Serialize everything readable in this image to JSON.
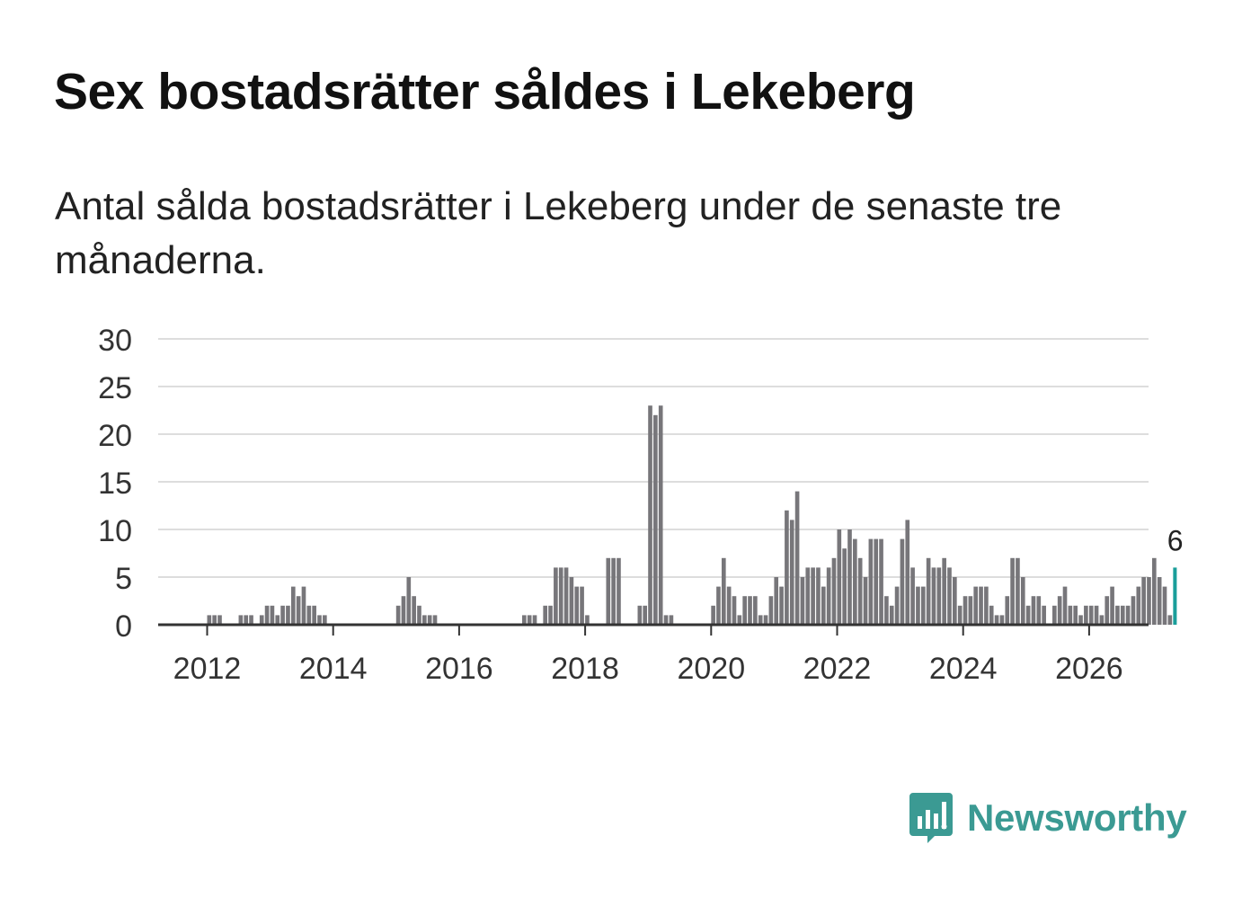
{
  "title": "Sex bostadsrätter såldes i Lekeberg",
  "subtitle": "Antal sålda bostadsrätter i Lekeberg under de senaste tre månaderna.",
  "brand": {
    "name": "Newsworthy",
    "logo_icon": "bar-chart-speech-bubble-icon",
    "color": "#3b9a93"
  },
  "chart_data": {
    "type": "bar",
    "title": "Sex bostadsrätter såldes i Lekeberg",
    "xlabel": "",
    "ylabel": "",
    "frequency": "monthly",
    "start": "2011-01",
    "ylim": [
      0,
      30
    ],
    "yticks": [
      0,
      5,
      10,
      15,
      20,
      25,
      30
    ],
    "xticks": [
      "2012",
      "2014",
      "2016",
      "2018",
      "2020",
      "2022",
      "2024",
      "2026"
    ],
    "grid": true,
    "colors": {
      "bars": "#77767a",
      "highlight": "#1a9e9a",
      "grid": "#dddddd",
      "axis": "#333333"
    },
    "highlight_label": "6",
    "values": [
      0,
      0,
      0,
      0,
      0,
      0,
      0,
      0,
      0,
      0,
      0,
      0,
      1,
      1,
      1,
      0,
      0,
      0,
      1,
      1,
      1,
      0,
      1,
      2,
      2,
      1,
      2,
      2,
      4,
      3,
      4,
      2,
      2,
      1,
      1,
      0,
      0,
      0,
      0,
      0,
      0,
      0,
      0,
      0,
      0,
      0,
      0,
      0,
      2,
      3,
      5,
      3,
      2,
      1,
      1,
      1,
      0,
      0,
      0,
      0,
      0,
      0,
      0,
      0,
      0,
      0,
      0,
      0,
      0,
      0,
      0,
      0,
      1,
      1,
      1,
      0,
      2,
      2,
      6,
      6,
      6,
      5,
      4,
      4,
      1,
      0,
      0,
      0,
      7,
      7,
      7,
      0,
      0,
      0,
      2,
      2,
      23,
      22,
      23,
      1,
      1,
      0,
      0,
      0,
      0,
      0,
      0,
      0,
      2,
      4,
      7,
      4,
      3,
      1,
      3,
      3,
      3,
      1,
      1,
      3,
      5,
      4,
      12,
      11,
      14,
      5,
      6,
      6,
      6,
      4,
      6,
      7,
      10,
      8,
      10,
      9,
      7,
      5,
      9,
      9,
      9,
      3,
      2,
      4,
      9,
      11,
      6,
      4,
      4,
      7,
      6,
      6,
      7,
      6,
      5,
      2,
      3,
      3,
      4,
      4,
      4,
      2,
      1,
      1,
      3,
      7,
      7,
      5,
      2,
      3,
      3,
      2,
      0,
      2,
      3,
      4,
      2,
      2,
      1,
      2,
      2,
      2,
      1,
      3,
      4,
      2,
      2,
      2,
      3,
      4,
      5,
      5,
      7,
      5,
      4,
      1,
      6
    ]
  }
}
